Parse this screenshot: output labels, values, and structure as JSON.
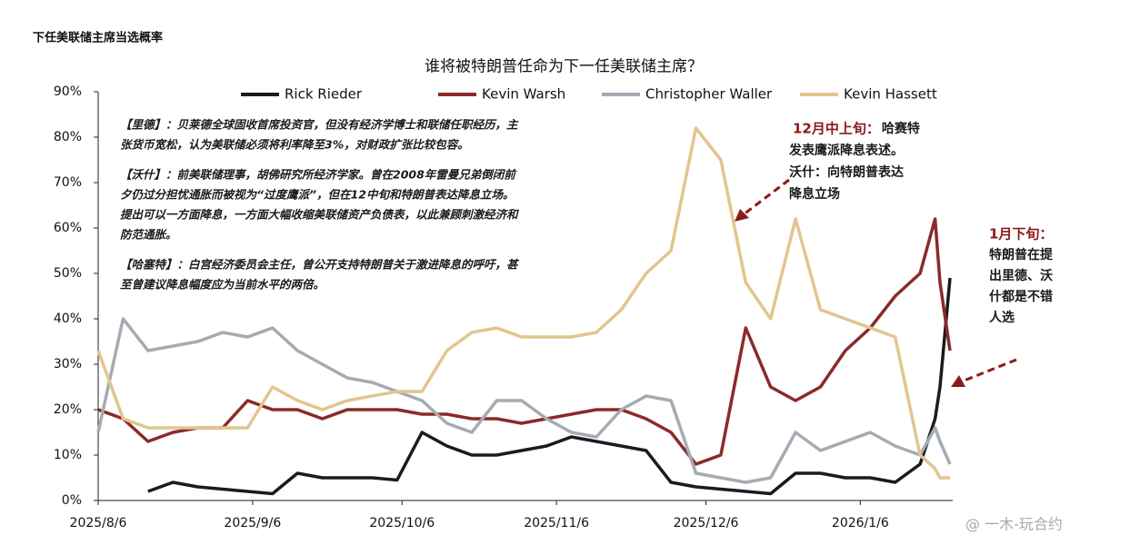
{
  "chart_data": {
    "type": "line",
    "subtitle": "下任美联储主席当选概率",
    "title": "谁将被特朗普任命为下一任美联储主席？",
    "x": [
      "2025/8/6",
      "2025/8/11",
      "2025/8/16",
      "2025/8/21",
      "2025/8/26",
      "2025/8/31",
      "2025/9/5",
      "2025/9/10",
      "2025/9/15",
      "2025/9/20",
      "2025/9/25",
      "2025/9/30",
      "2025/10/5",
      "2025/10/10",
      "2025/10/15",
      "2025/10/20",
      "2025/10/25",
      "2025/10/30",
      "2025/11/4",
      "2025/11/9",
      "2025/11/14",
      "2025/11/19",
      "2025/11/24",
      "2025/11/29",
      "2025/12/4",
      "2025/12/9",
      "2025/12/14",
      "2025/12/19",
      "2025/12/24",
      "2025/12/29",
      "2026/1/3",
      "2026/1/8",
      "2026/1/13",
      "2026/1/18",
      "2026/1/21",
      "2026/1/22",
      "2026/1/24"
    ],
    "series": [
      {
        "name": "Rick Rieder",
        "color": "#1a1a22",
        "values": [
          null,
          null,
          2,
          4,
          3,
          2.5,
          2,
          1.5,
          6,
          5,
          5,
          5,
          4.5,
          15,
          12,
          10,
          10,
          11,
          12,
          14,
          13,
          12,
          11,
          4,
          3,
          2.5,
          2,
          1.5,
          6,
          6,
          5,
          5,
          4,
          8,
          18,
          25,
          49
        ]
      },
      {
        "name": "Kevin Warsh",
        "color": "#8b2a2a",
        "values": [
          20,
          18,
          13,
          15,
          16,
          16,
          22,
          20,
          20,
          18,
          20,
          20,
          20,
          19,
          19,
          18,
          18,
          17,
          18,
          19,
          20,
          20,
          18,
          15,
          8,
          10,
          38,
          25,
          22,
          25,
          33,
          38,
          45,
          50,
          62,
          48,
          33
        ]
      },
      {
        "name": "Christopher Waller",
        "color": "#a4abb3",
        "values": [
          15,
          40,
          33,
          34,
          35,
          37,
          36,
          38,
          33,
          30,
          27,
          26,
          24,
          22,
          17,
          15,
          22,
          22,
          18,
          15,
          14,
          20,
          23,
          22,
          6,
          5,
          4,
          5,
          15,
          11,
          13,
          15,
          12,
          10,
          16,
          13,
          8
        ]
      },
      {
        "name": "Kevin Hassett",
        "color": "#e2c58e",
        "values": [
          33,
          18,
          16,
          16,
          16,
          16,
          16,
          25,
          22,
          20,
          22,
          23,
          24,
          24,
          33,
          37,
          38,
          36,
          36,
          36,
          37,
          42,
          50,
          55,
          82,
          75,
          48,
          40,
          62,
          42,
          40,
          38,
          36,
          10,
          7,
          5,
          5
        ]
      }
    ],
    "xlim": [
      "2025/8/6",
      "2026/1/24"
    ],
    "xticks": [
      "2025/8/6",
      "2025/9/6",
      "2025/10/6",
      "2025/11/6",
      "2025/12/6",
      "2026/1/6"
    ],
    "ylim": [
      0,
      90
    ],
    "yticks": [
      {
        "value": 0,
        "label": "0%"
      },
      {
        "value": 10,
        "label": "10%"
      },
      {
        "value": 20,
        "label": "20%"
      },
      {
        "value": 30,
        "label": "30%"
      },
      {
        "value": 40,
        "label": "40%"
      },
      {
        "value": 50,
        "label": "50%"
      },
      {
        "value": 60,
        "label": "60%"
      },
      {
        "value": 70,
        "label": "70%"
      },
      {
        "value": 80,
        "label": "80%"
      },
      {
        "value": 90,
        "label": "90%"
      }
    ],
    "grid": false,
    "annotations": [
      [
        "【里德】：贝莱德全球固收首席投资官，但没有经济学博士和联储任职经历，主",
        "张货币宽松，认为美联储必须将利率降至3%，对财政扩张比较包容。"
      ],
      [
        "【沃什】：前美联储理事，胡佛研究所经济学家。曾在2008年雷曼兄弟倒闭前",
        "夕仍过分担忧通胀而被视为“过度鹰派”，但在12中旬和特朗普表达降息立场。",
        "提出可以一方面降息，一方面大幅收缩美联储资产负债表，以此兼顾刺激经济和",
        "防范通胀。"
      ],
      [
        "【哈塞特】：白宫经济委员会主任，曾公开支持特朗普关于激进降息的呼吁，甚",
        "至曾建议降息幅度应为当前水平的两倍。"
      ]
    ],
    "notes": [
      {
        "heading": "12月中上旬：",
        "lines": [
          "哈赛特",
          "发表鹰派降息表述。",
          "沃什：向特朗普表达",
          "降息立场"
        ]
      },
      {
        "heading": "1月下旬：",
        "lines": [
          "特朗普在提",
          "出里德、沃",
          "什都是不错",
          "人选"
        ]
      }
    ],
    "watermark": "@ 一木-玩合约"
  }
}
